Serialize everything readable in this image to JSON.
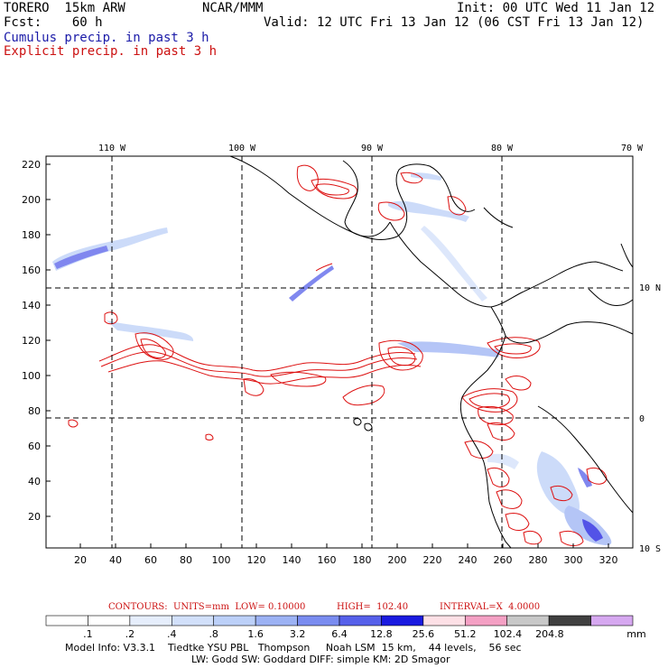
{
  "header": {
    "model": "TORERO  15km ARW",
    "org": "NCAR/MMM",
    "init": "Init: 00 UTC Wed 11 Jan 12",
    "fcst": "Fcst:    60 h",
    "valid": "Valid: 12 UTC Fri 13 Jan 12 (06 CST Fri 13 Jan 12)",
    "line_blue": "Cumulus precip. in past 3 h",
    "line_red": "Explicit precip. in past 3 h"
  },
  "map": {
    "lon_labels": [
      "110 W",
      "100 W",
      "90 W",
      "80 W",
      "70 W"
    ],
    "lat_labels": [
      "10 N",
      "0",
      "10 S"
    ],
    "y_ticks": [
      "220",
      "200",
      "180",
      "160",
      "140",
      "120",
      "100",
      "80",
      "60",
      "40",
      "20"
    ],
    "x_ticks": [
      "20",
      "40",
      "60",
      "80",
      "100",
      "120",
      "140",
      "160",
      "180",
      "200",
      "220",
      "240",
      "260",
      "280",
      "300",
      "320"
    ],
    "colors": {
      "coast": "#000000",
      "grid": "#000000",
      "cumulus": "#2a2ae0",
      "explicit": "#dd1111"
    }
  },
  "contours": {
    "units": "CONTOURS:  UNITS=mm  LOW= 0.10000",
    "high": "HIGH=  102.40",
    "interval": "INTERVAL=X  4.0000"
  },
  "colorbar": {
    "labels": [
      ".1",
      ".2",
      ".4",
      ".8",
      "1.6",
      "3.2",
      "6.4",
      "12.8",
      "25.6",
      "51.2",
      "102.4",
      "204.8"
    ],
    "unit": "mm",
    "colors": [
      "#ffffff",
      "#ffffff",
      "#e6eefc",
      "#d2e0fa",
      "#bcd0f8",
      "#9cb2f4",
      "#7a8cf0",
      "#5660ea",
      "#1a1ae0",
      "#fde0e6",
      "#f4a0c4",
      "#c8c8c8",
      "#404040",
      "#d6a8f0"
    ]
  },
  "footer": {
    "line1": "Model Info: V3.3.1    Tiedtke YSU PBL   Thompson     Noah LSM  15 km,    44 levels,    56 sec",
    "line2": "LW: Godd SW: Goddard DIFF: simple KM: 2D Smagor"
  }
}
